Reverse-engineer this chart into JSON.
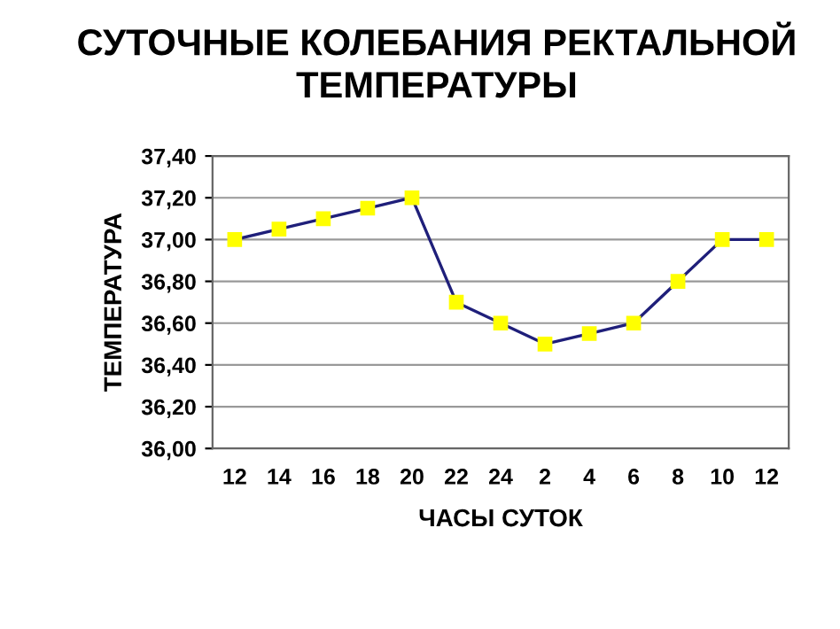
{
  "chart_data": {
    "type": "line",
    "title": "СУТОЧНЫЕ КОЛЕБАНИЯ РЕКТАЛЬНОЙ\nТЕМПЕРАТУРЫ",
    "xlabel": "ЧАСЫ СУТОК",
    "ylabel": "ТЕМПЕРАТУРА",
    "categories": [
      "12",
      "14",
      "16",
      "18",
      "20",
      "22",
      "24",
      "2",
      "4",
      "6",
      "8",
      "10",
      "12"
    ],
    "series": [
      {
        "color": "#1f1f7a",
        "values": [
          37.0,
          37.05,
          37.1,
          37.15,
          37.2,
          36.7,
          36.6,
          36.5,
          36.55,
          36.6,
          36.8,
          37.0,
          37.0
        ]
      }
    ],
    "ylim": [
      36.0,
      37.4
    ],
    "yticks": [
      {
        "value": 36.0,
        "label": "36,00"
      },
      {
        "value": 36.2,
        "label": "36,20"
      },
      {
        "value": 36.4,
        "label": "36,40"
      },
      {
        "value": 36.6,
        "label": "36,60"
      },
      {
        "value": 36.8,
        "label": "36,80"
      },
      {
        "value": 37.0,
        "label": "37,00"
      },
      {
        "value": 37.2,
        "label": "37,20"
      },
      {
        "value": 37.4,
        "label": "37,40"
      }
    ],
    "grid": "y",
    "marker": "square",
    "line_style": "solid",
    "legend": false
  }
}
